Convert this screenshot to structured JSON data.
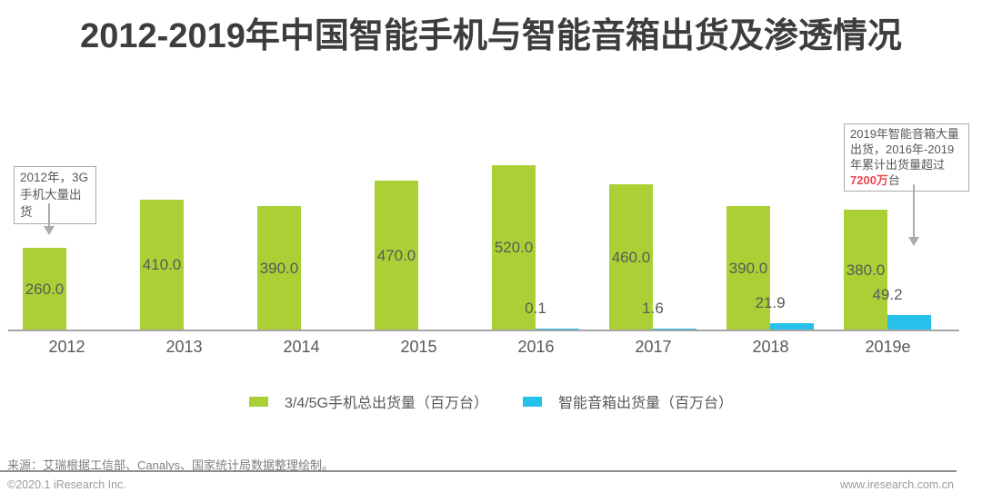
{
  "title": "2012-2019年中国智能手机与智能音箱出货及渗透情况",
  "chart_data": {
    "type": "bar",
    "categories": [
      "2012",
      "2013",
      "2014",
      "2015",
      "2016",
      "2017",
      "2018",
      "2019e"
    ],
    "series": [
      {
        "name": "3/4/5G手机总出货量（百万台）",
        "color": "#abd036",
        "values": [
          260.0,
          410.0,
          390.0,
          470.0,
          520.0,
          460.0,
          390.0,
          380.0
        ],
        "labels": [
          "260.0",
          "410.0",
          "390.0",
          "470.0",
          "520.0",
          "460.0",
          "390.0",
          "380.0"
        ],
        "label_position": "inside-center"
      },
      {
        "name": "智能音箱出货量（百万台）",
        "color": "#26c1ea",
        "values": [
          null,
          null,
          null,
          null,
          0.1,
          1.6,
          21.9,
          49.2
        ],
        "labels": [
          null,
          null,
          null,
          null,
          "0.1",
          "1.6",
          "21.9",
          "49.2"
        ],
        "label_position": "outside-end"
      }
    ],
    "ylim": [
      0,
      520
    ],
    "grid": false,
    "axis_color": "#a6a6a6",
    "legend_position": "bottom"
  },
  "annotations": {
    "left": {
      "text": "2012年，3G手机大量出货"
    },
    "right": {
      "text_before": "2019年智能音箱大量出货，2016年-2019年累计出货量超过",
      "highlight": "7200万",
      "text_after": "台",
      "highlight_color": "#e8494f"
    }
  },
  "source": {
    "text": "来源：艾瑞根据工信部、Canalys、国家统计局数据整理绘制。"
  },
  "footer": {
    "copyright": "©2020.1 iResearch Inc.",
    "website": "www.iresearch.com.cn"
  }
}
